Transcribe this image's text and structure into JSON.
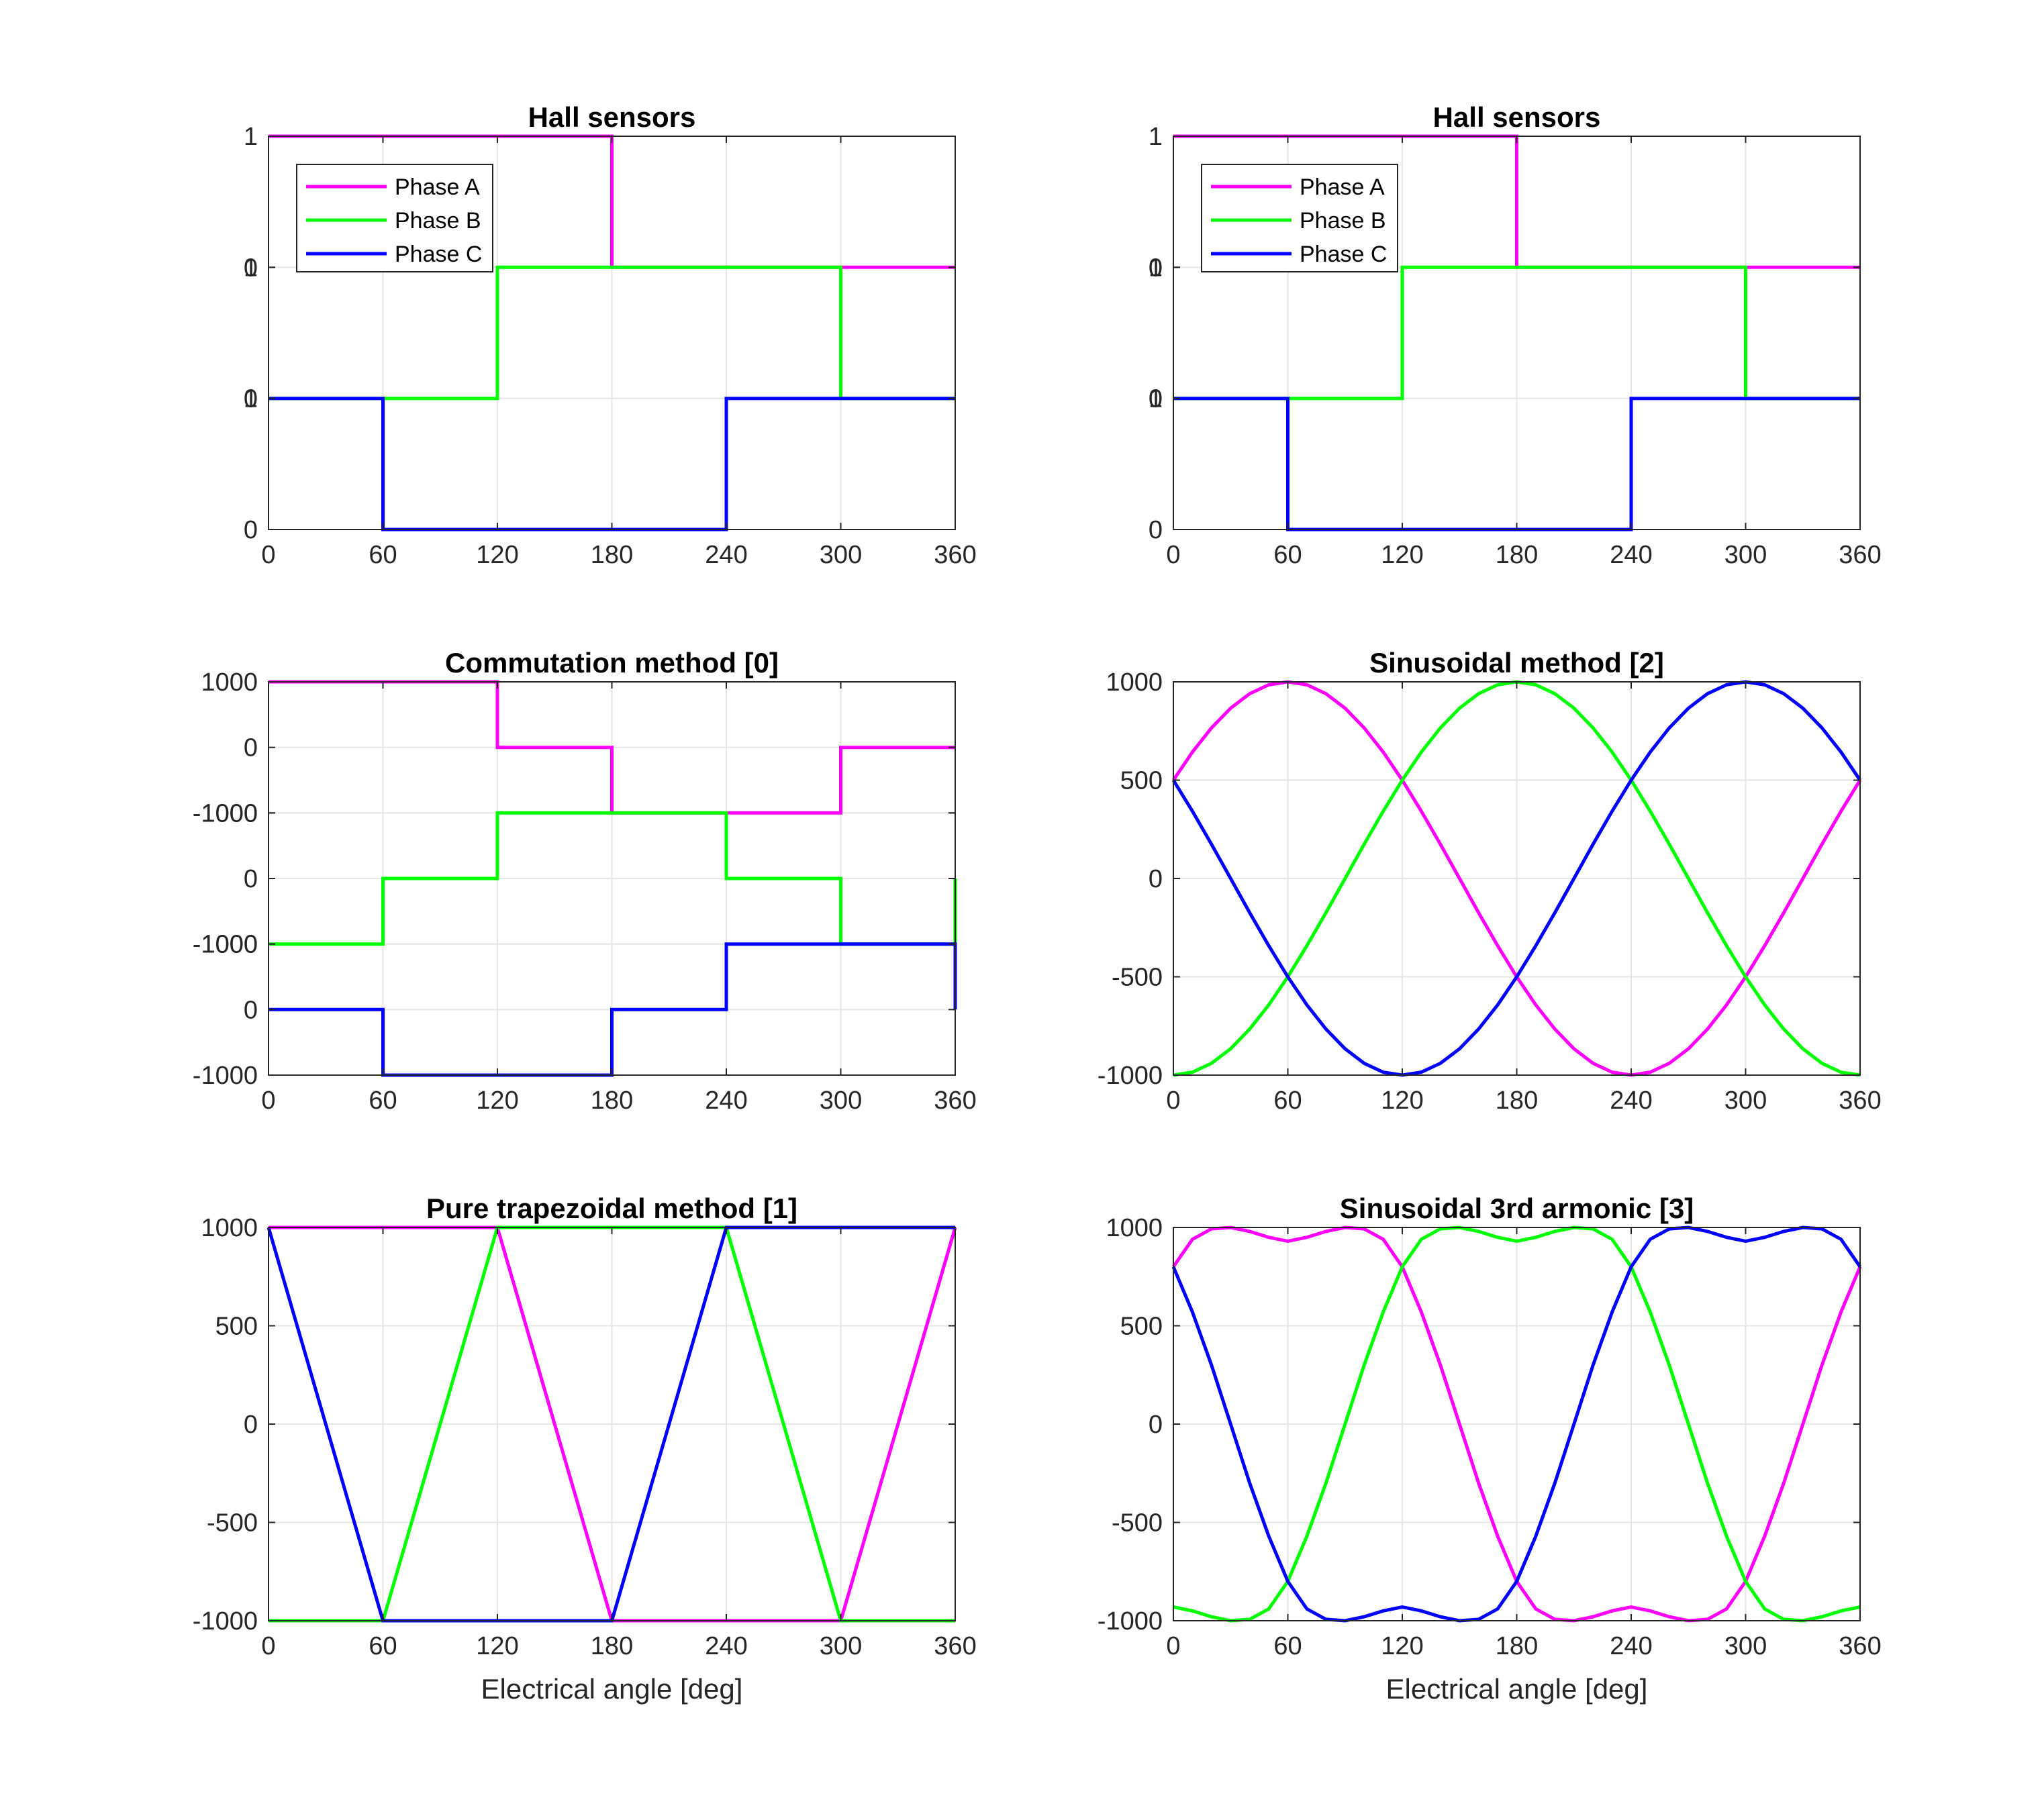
{
  "colors": {
    "phase_a": "#ff00ff",
    "phase_b": "#00ff00",
    "phase_c": "#0000ff"
  },
  "legend": {
    "placement": "top-left",
    "entries": [
      "Phase A",
      "Phase B",
      "Phase C"
    ]
  },
  "chart_data": [
    {
      "type": "line",
      "panel": "top-left",
      "title": "Hall sensors",
      "xlabel": "",
      "xlim": [
        0,
        360
      ],
      "xticks": [
        0,
        60,
        120,
        180,
        240,
        300,
        360
      ],
      "grid": true,
      "stacked": true,
      "legend": true,
      "bands_tick_labels": [
        "1",
        "0"
      ],
      "series": [
        {
          "name": "Phase A",
          "x": [
            0,
            180,
            180,
            360
          ],
          "y": [
            1,
            1,
            0,
            0
          ]
        },
        {
          "name": "Phase B",
          "x": [
            0,
            120,
            120,
            300,
            300,
            360
          ],
          "y": [
            0,
            0,
            1,
            1,
            0,
            0
          ]
        },
        {
          "name": "Phase C",
          "x": [
            0,
            60,
            60,
            240,
            240,
            360
          ],
          "y": [
            1,
            1,
            0,
            0,
            1,
            1
          ]
        }
      ]
    },
    {
      "type": "line",
      "panel": "top-right",
      "title": "Hall sensors",
      "xlabel": "",
      "xlim": [
        0,
        360
      ],
      "xticks": [
        0,
        60,
        120,
        180,
        240,
        300,
        360
      ],
      "grid": true,
      "stacked": true,
      "legend": true,
      "bands_tick_labels": [
        "1",
        "0"
      ],
      "series": [
        {
          "name": "Phase A",
          "x": [
            0,
            180,
            180,
            360
          ],
          "y": [
            1,
            1,
            0,
            0
          ]
        },
        {
          "name": "Phase B",
          "x": [
            0,
            120,
            120,
            300,
            300,
            360
          ],
          "y": [
            0,
            0,
            1,
            1,
            0,
            0
          ]
        },
        {
          "name": "Phase C",
          "x": [
            0,
            60,
            60,
            240,
            240,
            360
          ],
          "y": [
            1,
            1,
            0,
            0,
            1,
            1
          ]
        }
      ]
    },
    {
      "type": "line",
      "panel": "middle-left",
      "title": "Commutation method [0]",
      "xlabel": "",
      "xlim": [
        0,
        360
      ],
      "xticks": [
        0,
        60,
        120,
        180,
        240,
        300,
        360
      ],
      "grid": true,
      "stacked": true,
      "legend": false,
      "bands_tick_labels": [
        "1000",
        "0",
        "-1000"
      ],
      "series": [
        {
          "name": "Phase A",
          "x": [
            0,
            120,
            120,
            180,
            180,
            300,
            300,
            360
          ],
          "y": [
            1000,
            1000,
            0,
            0,
            -1000,
            -1000,
            0,
            0
          ]
        },
        {
          "name": "Phase B",
          "x": [
            0,
            60,
            60,
            120,
            120,
            240,
            240,
            300,
            300,
            360,
            360
          ],
          "y": [
            -1000,
            -1000,
            0,
            0,
            1000,
            1000,
            0,
            0,
            -1000,
            -1000,
            0
          ]
        },
        {
          "name": "Phase C",
          "x": [
            0,
            60,
            60,
            180,
            180,
            240,
            240,
            360,
            360
          ],
          "y": [
            0,
            0,
            -1000,
            -1000,
            0,
            0,
            1000,
            1000,
            0
          ]
        }
      ]
    },
    {
      "type": "line",
      "panel": "middle-right",
      "title": "Sinusoidal method [2]",
      "xlabel": "",
      "xlim": [
        0,
        360
      ],
      "ylim": [
        -1000,
        1000
      ],
      "xticks": [
        0,
        60,
        120,
        180,
        240,
        300,
        360
      ],
      "yticks": [
        1000,
        500,
        0,
        -500,
        -1000
      ],
      "grid": true,
      "legend": false,
      "series": [
        {
          "name": "Phase A",
          "x": [
            0,
            10,
            20,
            30,
            40,
            50,
            60,
            70,
            80,
            90,
            100,
            110,
            120,
            130,
            140,
            150,
            160,
            170,
            180,
            190,
            200,
            210,
            220,
            230,
            240,
            250,
            260,
            270,
            280,
            290,
            300,
            310,
            320,
            330,
            340,
            350,
            360
          ],
          "y": [
            500,
            643,
            766,
            866,
            940,
            985,
            1000,
            985,
            940,
            866,
            766,
            643,
            500,
            342,
            174,
            0,
            -174,
            -342,
            -500,
            -643,
            -766,
            -866,
            -940,
            -985,
            -1000,
            -985,
            -940,
            -866,
            -766,
            -643,
            -500,
            -342,
            -174,
            0,
            174,
            342,
            500
          ]
        },
        {
          "name": "Phase B",
          "x": [
            0,
            10,
            20,
            30,
            40,
            50,
            60,
            70,
            80,
            90,
            100,
            110,
            120,
            130,
            140,
            150,
            160,
            170,
            180,
            190,
            200,
            210,
            220,
            230,
            240,
            250,
            260,
            270,
            280,
            290,
            300,
            310,
            320,
            330,
            340,
            350,
            360
          ],
          "y": [
            -1000,
            -985,
            -940,
            -866,
            -766,
            -643,
            -500,
            -342,
            -174,
            0,
            174,
            342,
            500,
            643,
            766,
            866,
            940,
            985,
            1000,
            985,
            940,
            866,
            766,
            643,
            500,
            342,
            174,
            0,
            -174,
            -342,
            -500,
            -643,
            -766,
            -866,
            -940,
            -985,
            -1000
          ]
        },
        {
          "name": "Phase C",
          "x": [
            0,
            10,
            20,
            30,
            40,
            50,
            60,
            70,
            80,
            90,
            100,
            110,
            120,
            130,
            140,
            150,
            160,
            170,
            180,
            190,
            200,
            210,
            220,
            230,
            240,
            250,
            260,
            270,
            280,
            290,
            300,
            310,
            320,
            330,
            340,
            350,
            360
          ],
          "y": [
            500,
            342,
            174,
            0,
            -174,
            -342,
            -500,
            -643,
            -766,
            -866,
            -940,
            -985,
            -1000,
            -985,
            -940,
            -866,
            -766,
            -643,
            -500,
            -342,
            -174,
            0,
            174,
            342,
            500,
            643,
            766,
            866,
            940,
            985,
            1000,
            985,
            940,
            866,
            766,
            643,
            500
          ]
        }
      ]
    },
    {
      "type": "line",
      "panel": "bottom-left",
      "title": "Pure trapezoidal method [1]",
      "xlabel": "Electrical angle [deg]",
      "xlim": [
        0,
        360
      ],
      "ylim": [
        -1000,
        1000
      ],
      "xticks": [
        0,
        60,
        120,
        180,
        240,
        300,
        360
      ],
      "yticks": [
        1000,
        500,
        0,
        -500,
        -1000
      ],
      "grid": true,
      "legend": false,
      "series": [
        {
          "name": "Phase A",
          "x": [
            0,
            120,
            180,
            300,
            360
          ],
          "y": [
            1000,
            1000,
            -1000,
            -1000,
            1000
          ]
        },
        {
          "name": "Phase B",
          "x": [
            0,
            60,
            120,
            240,
            300,
            360
          ],
          "y": [
            -1000,
            -1000,
            1000,
            1000,
            -1000,
            -1000
          ]
        },
        {
          "name": "Phase C",
          "x": [
            0,
            60,
            180,
            240,
            360
          ],
          "y": [
            1000,
            -1000,
            -1000,
            1000,
            1000
          ]
        }
      ]
    },
    {
      "type": "line",
      "panel": "bottom-right",
      "title": "Sinusoidal 3rd armonic [3]",
      "xlabel": "Electrical angle [deg]",
      "xlim": [
        0,
        360
      ],
      "ylim": [
        -1000,
        1000
      ],
      "xticks": [
        0,
        60,
        120,
        180,
        240,
        300,
        360
      ],
      "yticks": [
        1000,
        500,
        0,
        -500,
        -1000
      ],
      "grid": true,
      "legend": false,
      "series": [
        {
          "name": "Phase A",
          "x": [
            0,
            10,
            20,
            30,
            40,
            50,
            60,
            70,
            80,
            90,
            100,
            110,
            120,
            130,
            140,
            150,
            160,
            170,
            180,
            190,
            200,
            210,
            220,
            230,
            240,
            250,
            260,
            270,
            280,
            290,
            300,
            310,
            320,
            330,
            340,
            350,
            360
          ],
          "y": [
            800,
            940,
            993,
            1000,
            980,
            950,
            930,
            950,
            980,
            1000,
            993,
            940,
            800,
            570,
            300,
            0,
            -300,
            -570,
            -800,
            -940,
            -993,
            -1000,
            -980,
            -950,
            -930,
            -950,
            -980,
            -1000,
            -993,
            -940,
            -800,
            -570,
            -300,
            0,
            300,
            570,
            800
          ]
        },
        {
          "name": "Phase B",
          "x": [
            0,
            10,
            20,
            30,
            40,
            50,
            60,
            70,
            80,
            90,
            100,
            110,
            120,
            130,
            140,
            150,
            160,
            170,
            180,
            190,
            200,
            210,
            220,
            230,
            240,
            250,
            260,
            270,
            280,
            290,
            300,
            310,
            320,
            330,
            340,
            350,
            360
          ],
          "y": [
            -930,
            -950,
            -980,
            -1000,
            -993,
            -940,
            -800,
            -570,
            -300,
            0,
            300,
            570,
            800,
            940,
            993,
            1000,
            980,
            950,
            930,
            950,
            980,
            1000,
            993,
            940,
            800,
            570,
            300,
            0,
            -300,
            -570,
            -800,
            -940,
            -993,
            -1000,
            -980,
            -950,
            -930
          ]
        },
        {
          "name": "Phase C",
          "x": [
            0,
            10,
            20,
            30,
            40,
            50,
            60,
            70,
            80,
            90,
            100,
            110,
            120,
            130,
            140,
            150,
            160,
            170,
            180,
            190,
            200,
            210,
            220,
            230,
            240,
            250,
            260,
            270,
            280,
            290,
            300,
            310,
            320,
            330,
            340,
            350,
            360
          ],
          "y": [
            800,
            570,
            300,
            0,
            -300,
            -570,
            -800,
            -940,
            -993,
            -1000,
            -980,
            -950,
            -930,
            -950,
            -980,
            -1000,
            -993,
            -940,
            -800,
            -570,
            -300,
            0,
            300,
            570,
            800,
            940,
            993,
            1000,
            980,
            950,
            930,
            950,
            980,
            1000,
            993,
            940,
            800
          ]
        }
      ]
    }
  ]
}
